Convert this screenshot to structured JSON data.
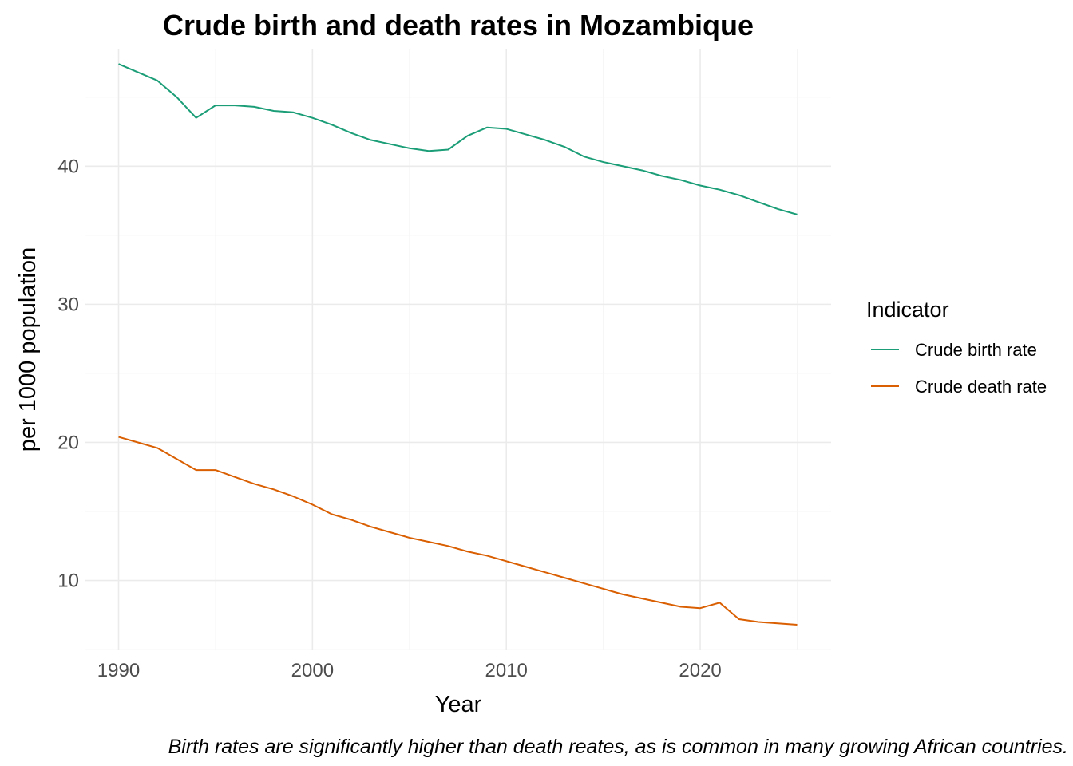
{
  "chart_data": {
    "type": "line",
    "title": "Crude birth and death rates in Mozambique",
    "xlabel": "Year",
    "ylabel": "per 1000 population",
    "caption": "Birth rates are significantly higher than death reates, as is common in many growing African countries.",
    "xlim": [
      1988.25,
      2026.75
    ],
    "ylim": [
      4.95,
      48.45
    ],
    "x_ticks": [
      1990,
      2000,
      2010,
      2020
    ],
    "y_ticks": [
      10,
      20,
      30,
      40
    ],
    "grid": true,
    "legend": {
      "title": "Indicator",
      "position": "right"
    },
    "x": [
      1990,
      1991,
      1992,
      1993,
      1994,
      1995,
      1996,
      1997,
      1998,
      1999,
      2000,
      2001,
      2002,
      2003,
      2004,
      2005,
      2006,
      2007,
      2008,
      2009,
      2010,
      2011,
      2012,
      2013,
      2014,
      2015,
      2016,
      2017,
      2018,
      2019,
      2020,
      2021,
      2022,
      2023,
      2024,
      2025
    ],
    "series": [
      {
        "name": "Crude birth rate",
        "color": "#1b9e77",
        "values": [
          47.4,
          46.8,
          46.2,
          45.0,
          43.5,
          44.4,
          44.4,
          44.3,
          44.0,
          43.9,
          43.5,
          43.0,
          42.4,
          41.9,
          41.6,
          41.3,
          41.1,
          41.2,
          42.2,
          42.8,
          42.7,
          42.3,
          41.9,
          41.4,
          40.7,
          40.3,
          40.0,
          39.7,
          39.3,
          39.0,
          38.6,
          38.3,
          37.9,
          37.4,
          36.9,
          36.5
        ]
      },
      {
        "name": "Crude death rate",
        "color": "#d95f02",
        "values": [
          20.4,
          20.0,
          19.6,
          18.8,
          18.0,
          18.0,
          17.5,
          17.0,
          16.6,
          16.1,
          15.5,
          14.8,
          14.4,
          13.9,
          13.5,
          13.1,
          12.8,
          12.5,
          12.1,
          11.8,
          11.4,
          11.0,
          10.6,
          10.2,
          9.8,
          9.4,
          9.0,
          8.7,
          8.4,
          8.1,
          8.0,
          8.4,
          7.2,
          7.0,
          6.9,
          6.8
        ]
      }
    ]
  }
}
